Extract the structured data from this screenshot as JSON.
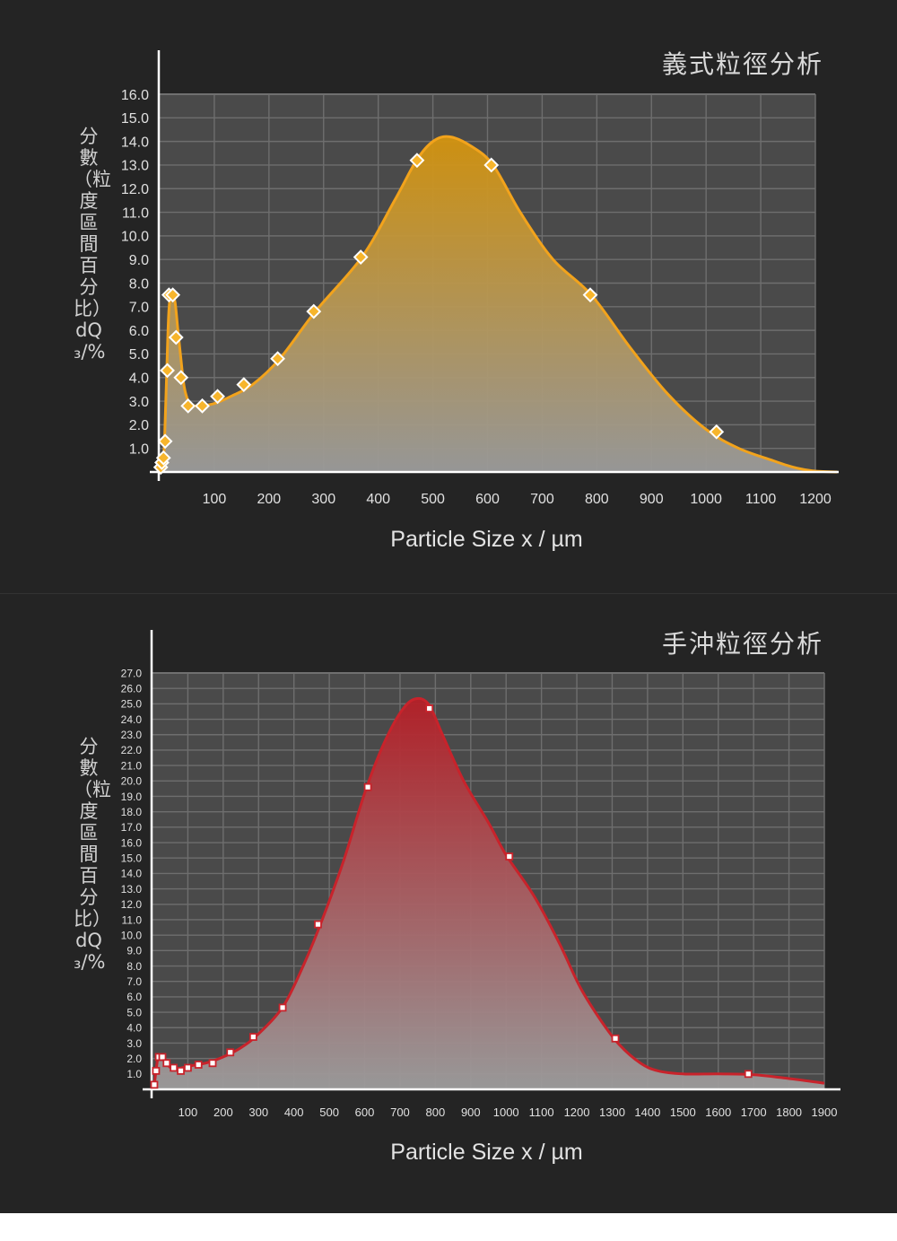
{
  "charts": [
    {
      "title": "義式粒徑分析",
      "ylabel": "分數（粒度區間百分比） dQ₃/%",
      "xlabel": "Particle Size x / µm",
      "colors": {
        "line": "#f2a31c",
        "fill_top": "#d4940e",
        "fill_bottom": "#9a9a9a",
        "marker_fill": "#f7b52c"
      }
    },
    {
      "title": "手沖粒徑分析",
      "ylabel": "分數（粒度區間百分比） dQ₃/%",
      "xlabel": "Particle Size x / µm",
      "colors": {
        "line": "#c8232b",
        "fill_top": "#b51f27",
        "fill_bottom": "#9c9c9c",
        "marker_fill": "#ffffff"
      }
    }
  ],
  "chart_data": [
    {
      "type": "area",
      "title": "義式粒徑分析",
      "xlabel": "Particle Size x / µm",
      "ylabel": "分數（粒度區間百分比） dQ₃/%",
      "xlim": [
        0,
        1200
      ],
      "ylim": [
        0,
        16
      ],
      "xticks": [
        100,
        200,
        300,
        400,
        500,
        600,
        700,
        800,
        900,
        1000,
        1100,
        1200
      ],
      "xtick_labels": [
        "100",
        "200",
        "300",
        "400",
        "500",
        "600",
        "700",
        "800",
        "900",
        "1000",
        "1100",
        "1200"
      ],
      "yticks": [
        1,
        2,
        3,
        4,
        5,
        6,
        7,
        8,
        9,
        10,
        11,
        12,
        13,
        14,
        15,
        16
      ],
      "ytick_labels": [
        "1.0",
        "2.0",
        "3.0",
        "4.0",
        "5.0",
        "6.0",
        "7.0",
        "8.0",
        "9.0",
        "10.0",
        "11.0",
        "12.0",
        "13.0",
        "14.0",
        "15.0",
        "16.0"
      ],
      "grid": true,
      "curve": [
        [
          0,
          0
        ],
        [
          3,
          0.1
        ],
        [
          6,
          0.4
        ],
        [
          9,
          1.4
        ],
        [
          13,
          4.3
        ],
        [
          17,
          6.9
        ],
        [
          22,
          7.5
        ],
        [
          28,
          7.2
        ],
        [
          33,
          6.1
        ],
        [
          38,
          5
        ],
        [
          45,
          3.6
        ],
        [
          55,
          2.9
        ],
        [
          70,
          2.8
        ],
        [
          100,
          2.9
        ],
        [
          130,
          3.2
        ],
        [
          170,
          3.7
        ],
        [
          220,
          4.8
        ],
        [
          285,
          6.8
        ],
        [
          370,
          9.1
        ],
        [
          430,
          11.5
        ],
        [
          470,
          13.2
        ],
        [
          500,
          14
        ],
        [
          530,
          14.2
        ],
        [
          570,
          13.8
        ],
        [
          610,
          13
        ],
        [
          660,
          11
        ],
        [
          720,
          9
        ],
        [
          790,
          7.5
        ],
        [
          860,
          5.3
        ],
        [
          930,
          3.3
        ],
        [
          1000,
          1.8
        ],
        [
          1060,
          1
        ],
        [
          1120,
          0.5
        ],
        [
          1160,
          0.2
        ],
        [
          1195,
          0.05
        ],
        [
          1240,
          0
        ]
      ],
      "points": [
        [
          2,
          0.2
        ],
        [
          4,
          0.4
        ],
        [
          7,
          0.6
        ],
        [
          10,
          1.3
        ],
        [
          14,
          4.3
        ],
        [
          17,
          7.5
        ],
        [
          24,
          7.5
        ],
        [
          30,
          5.7
        ],
        [
          39,
          4
        ],
        [
          52,
          2.8
        ],
        [
          78,
          2.8
        ],
        [
          106,
          3.2
        ],
        [
          154,
          3.7
        ],
        [
          216,
          4.8
        ],
        [
          282,
          6.8
        ],
        [
          368,
          9.1
        ],
        [
          471,
          13.2
        ],
        [
          607,
          13
        ],
        [
          788,
          7.5
        ],
        [
          1019,
          1.7
        ]
      ]
    },
    {
      "type": "area",
      "title": "手沖粒徑分析",
      "xlabel": "Particle Size x / µm",
      "ylabel": "分數（粒度區間百分比） dQ₃/%",
      "xlim": [
        0,
        1900
      ],
      "ylim": [
        0,
        27
      ],
      "xticks": [
        100,
        200,
        300,
        400,
        500,
        600,
        700,
        800,
        900,
        1000,
        1100,
        1200,
        1300,
        1400,
        1500,
        1600,
        1700,
        1800,
        1900
      ],
      "xtick_labels": [
        "100",
        "200",
        "300",
        "400",
        "500",
        "600",
        "700",
        "800",
        "900",
        "1000",
        "1100",
        "1200",
        "1300",
        "1400",
        "1500",
        "1600",
        "1700",
        "1800",
        "1900"
      ],
      "yticks": [
        1,
        2,
        3,
        4,
        5,
        6,
        7,
        8,
        9,
        10,
        11,
        12,
        13,
        14,
        15,
        16,
        17,
        18,
        19,
        20,
        21,
        22,
        23,
        24,
        25,
        26,
        27
      ],
      "ytick_labels": [
        "1.0",
        "2.0",
        "3.0",
        "4.0",
        "5.0",
        "6.0",
        "7.0",
        "8.0",
        "9.0",
        "10.0",
        "11.0",
        "12.0",
        "13.0",
        "14.0",
        "15.0",
        "16.0",
        "17.0",
        "18.0",
        "19.0",
        "20.0",
        "21.0",
        "22.0",
        "23.0",
        "24.0",
        "25.0",
        "26.0",
        "27.0"
      ],
      "grid": true,
      "curve": [
        [
          0,
          0
        ],
        [
          5,
          0.3
        ],
        [
          10,
          1.2
        ],
        [
          16,
          2.1
        ],
        [
          25,
          2.2
        ],
        [
          40,
          1.7
        ],
        [
          60,
          1.3
        ],
        [
          100,
          1.5
        ],
        [
          150,
          1.7
        ],
        [
          200,
          2.1
        ],
        [
          250,
          2.7
        ],
        [
          300,
          3.6
        ],
        [
          370,
          5.4
        ],
        [
          430,
          8.2
        ],
        [
          480,
          11
        ],
        [
          540,
          14.8
        ],
        [
          600,
          19.2
        ],
        [
          650,
          22.2
        ],
        [
          700,
          24.4
        ],
        [
          740,
          25.3
        ],
        [
          780,
          25
        ],
        [
          820,
          23
        ],
        [
          880,
          20
        ],
        [
          950,
          17.3
        ],
        [
          1000,
          15.2
        ],
        [
          1080,
          12.5
        ],
        [
          1150,
          9.5
        ],
        [
          1210,
          6.6
        ],
        [
          1270,
          4.4
        ],
        [
          1320,
          2.9
        ],
        [
          1380,
          1.7
        ],
        [
          1430,
          1.2
        ],
        [
          1500,
          1
        ],
        [
          1600,
          1
        ],
        [
          1700,
          0.95
        ],
        [
          1800,
          0.7
        ],
        [
          1900,
          0.4
        ]
      ],
      "points": [
        [
          5,
          0.3
        ],
        [
          10,
          1.2
        ],
        [
          18,
          2.1
        ],
        [
          28,
          2.1
        ],
        [
          40,
          1.7
        ],
        [
          60,
          1.4
        ],
        [
          80,
          1.2
        ],
        [
          100,
          1.4
        ],
        [
          130,
          1.6
        ],
        [
          170,
          1.7
        ],
        [
          220,
          2.4
        ],
        [
          285,
          3.4
        ],
        [
          368,
          5.3
        ],
        [
          468,
          10.7
        ],
        [
          609,
          19.6
        ],
        [
          783,
          24.7
        ],
        [
          1009,
          15.1
        ],
        [
          1309,
          3.3
        ],
        [
          1685,
          1
        ]
      ]
    }
  ]
}
